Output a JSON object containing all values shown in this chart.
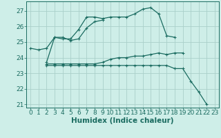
{
  "xlabel": "Humidex (Indice chaleur)",
  "x": [
    0,
    1,
    2,
    3,
    4,
    5,
    6,
    7,
    8,
    9,
    10,
    11,
    12,
    13,
    14,
    15,
    16,
    17,
    18,
    19,
    20,
    21,
    22,
    23
  ],
  "line1": [
    24.6,
    24.5,
    24.6,
    25.3,
    25.2,
    25.2,
    25.8,
    26.6,
    26.6,
    26.5,
    26.6,
    26.6,
    26.6,
    26.8,
    27.1,
    27.2,
    26.8,
    25.4,
    25.3,
    null,
    null,
    null,
    null,
    null
  ],
  "line2": [
    null,
    null,
    23.7,
    25.3,
    25.3,
    25.1,
    25.2,
    25.9,
    26.3,
    26.4,
    null,
    null,
    null,
    null,
    null,
    null,
    null,
    null,
    null,
    null,
    null,
    null,
    null,
    null
  ],
  "line3": [
    null,
    null,
    23.6,
    23.6,
    23.6,
    23.6,
    23.6,
    23.6,
    23.6,
    23.7,
    23.9,
    24.0,
    24.0,
    24.1,
    24.1,
    24.2,
    24.3,
    24.2,
    24.3,
    24.3,
    null,
    null,
    null,
    null
  ],
  "line4": [
    null,
    null,
    23.5,
    23.5,
    23.5,
    23.5,
    23.5,
    23.5,
    23.5,
    23.5,
    23.5,
    23.5,
    23.5,
    23.5,
    23.5,
    23.5,
    23.5,
    23.5,
    23.3,
    23.3,
    22.5,
    21.8,
    21.0,
    null
  ],
  "ylim": [
    20.8,
    27.6
  ],
  "yticks": [
    21,
    22,
    23,
    24,
    25,
    26,
    27
  ],
  "xlim": [
    -0.5,
    23.5
  ],
  "line_color": "#1a6b60",
  "bg_color": "#ceeee8",
  "grid_color": "#aacfca",
  "tick_fontsize": 6.5,
  "label_fontsize": 7.5
}
